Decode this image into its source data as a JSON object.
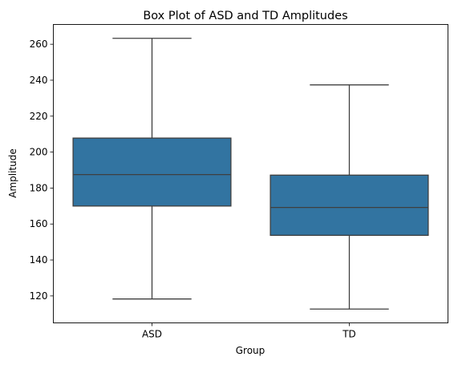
{
  "chart_data": {
    "type": "box",
    "title": "Box Plot of ASD and TD Amplitudes",
    "xlabel": "Group",
    "ylabel": "Amplitude",
    "ylim": [
      105,
      271
    ],
    "yticks": [
      120,
      140,
      160,
      180,
      200,
      220,
      240,
      260
    ],
    "grid": false,
    "colors": {
      "box": "#3274a1",
      "line": "#3f3f3f"
    },
    "categories": [
      "ASD",
      "TD"
    ],
    "boxes": [
      {
        "category": "ASD",
        "whisker_low": 118.3,
        "q1": 170.0,
        "median": 187.5,
        "q3": 207.8,
        "whisker_high": 263.3
      },
      {
        "category": "TD",
        "whisker_low": 112.7,
        "q1": 153.7,
        "median": 169.2,
        "q3": 187.2,
        "whisker_high": 237.4
      }
    ]
  }
}
